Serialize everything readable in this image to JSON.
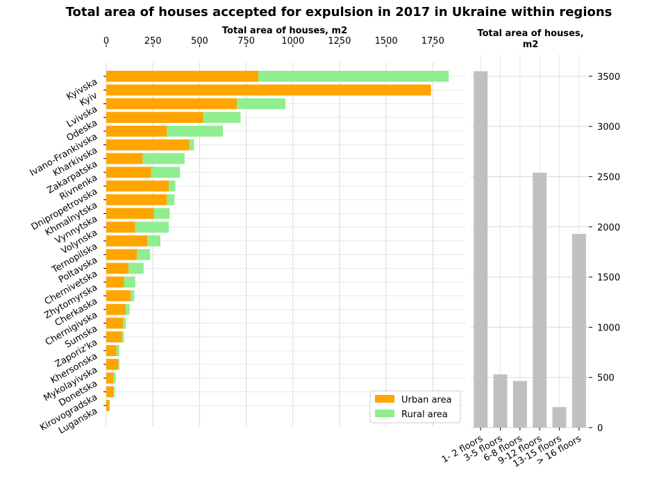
{
  "title": "Total area of houses accepted for expulsion in 2017 in Ukraine within regions",
  "chart_data": [
    {
      "type": "bar",
      "orientation": "horizontal",
      "stacked": true,
      "xlabel": "Total area of houses, m2",
      "xaxis_position": "top",
      "xlim": [
        0,
        1920
      ],
      "xticks": [
        0,
        250,
        500,
        750,
        1000,
        1250,
        1500,
        1750
      ],
      "grid": true,
      "legend_position": "lower-right",
      "categories": [
        "Kyivska",
        "Kyiv",
        "Lvivska",
        "Odeska",
        "Ivano-Frankivska",
        "Kharkivska",
        "Zakarpatska",
        "Rivnenka",
        "Dnipropetrovska",
        "Khmalnytska",
        "Vynnytska",
        "Volynska",
        "Ternopilska",
        "Poltavska",
        "Chernivetska",
        "Zhytomyrska",
        "Cherkaska",
        "Chernigivska",
        "Sumska",
        "Zaporiz'ka",
        "Khersonska",
        "Mykolayivska",
        "Donetska",
        "Kirovogradska",
        "Luganska"
      ],
      "series": [
        {
          "name": "Urban area",
          "color": "#ffa500",
          "values": [
            815,
            1740,
            700,
            520,
            325,
            445,
            195,
            240,
            335,
            325,
            255,
            155,
            220,
            165,
            120,
            95,
            130,
            105,
            90,
            85,
            55,
            65,
            38,
            40,
            15
          ]
        },
        {
          "name": "Rural area",
          "color": "#90ee90",
          "values": [
            1020,
            0,
            260,
            200,
            300,
            25,
            225,
            155,
            35,
            40,
            85,
            180,
            70,
            70,
            80,
            60,
            20,
            20,
            15,
            10,
            15,
            5,
            12,
            5,
            5
          ]
        }
      ]
    },
    {
      "type": "bar",
      "title": "Total area of houses,\nm2",
      "title_lines": [
        "Total area of houses,",
        "m2"
      ],
      "yaxis_position": "right",
      "ylim": [
        0,
        3720
      ],
      "yticks": [
        0,
        500,
        1000,
        1500,
        2000,
        2500,
        3000,
        3500
      ],
      "grid": true,
      "color": "#c0c0c0",
      "categories": [
        "1- 2 floors",
        "3-5 floors",
        "6-8 floors",
        "9-12 floors",
        "13-15 floors",
        "> 16 floors"
      ],
      "values": [
        3550,
        530,
        465,
        2540,
        205,
        1930
      ]
    }
  ]
}
